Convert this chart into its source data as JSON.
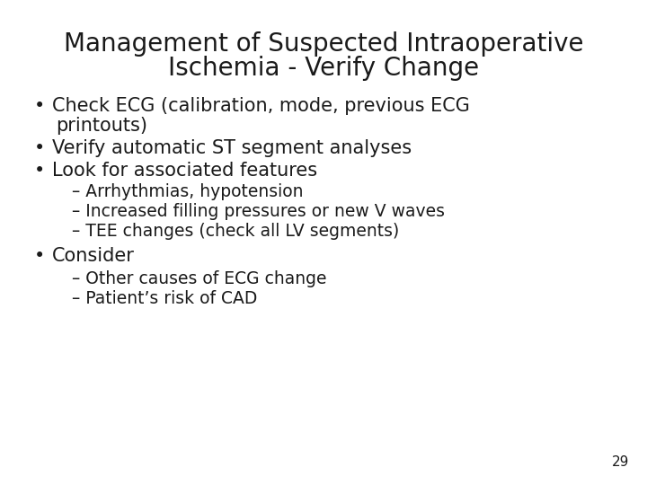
{
  "title_line1": "Management of Suspected Intraoperative",
  "title_line2": "Ischemia - Verify Change",
  "background_color": "#ffffff",
  "text_color": "#1a1a1a",
  "title_fontsize": 20,
  "body_fontsize": 15,
  "sub_fontsize": 13.5,
  "page_number": "29",
  "page_number_fontsize": 11
}
